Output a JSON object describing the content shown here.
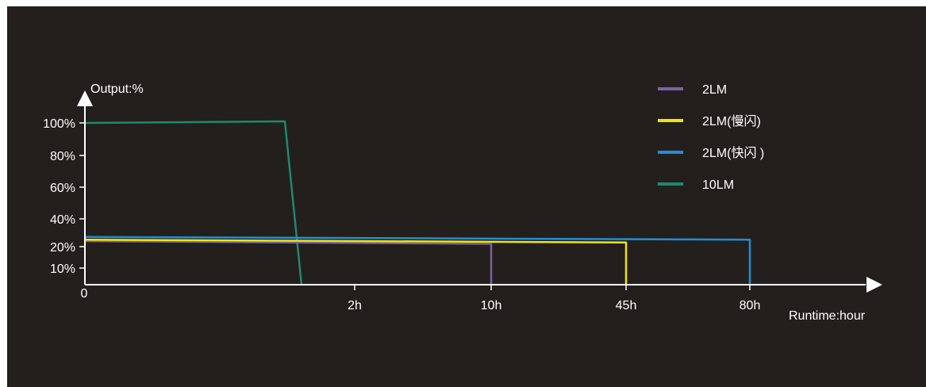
{
  "chart_data": {
    "type": "line",
    "ylabel": "Output:%",
    "xlabel": "Runtime:hour",
    "x_tick_labels": [
      "0",
      "2h",
      "10h",
      "45h",
      "80h"
    ],
    "y_tick_labels": [
      "100%",
      "80%",
      "60%",
      "40%",
      "20%",
      "10%"
    ],
    "y_tick_values": [
      100,
      80,
      60,
      40,
      20,
      10
    ],
    "x_scale": "categorical-nonlinear",
    "legend_position": "top-right",
    "grid": false,
    "series": [
      {
        "name": "2LM",
        "color": "#7b62a6",
        "points": [
          [
            "0",
            24
          ],
          [
            "10h",
            22
          ],
          [
            "10h",
            0
          ]
        ]
      },
      {
        "name": "2LM(慢闪)",
        "color": "#f2e600",
        "points": [
          [
            "0",
            25
          ],
          [
            "45h",
            23
          ],
          [
            "45h",
            0
          ]
        ]
      },
      {
        "name": "2LM(快闪 )",
        "color": "#1f8fd6",
        "points": [
          [
            "0",
            27
          ],
          [
            "80h",
            25
          ],
          [
            "80h",
            0
          ]
        ]
      },
      {
        "name": "10LM",
        "color": "#1f8a6a",
        "points": [
          [
            "0",
            100
          ],
          [
            "~1.6h",
            101
          ],
          [
            "~1.8h",
            0
          ]
        ]
      }
    ]
  }
}
